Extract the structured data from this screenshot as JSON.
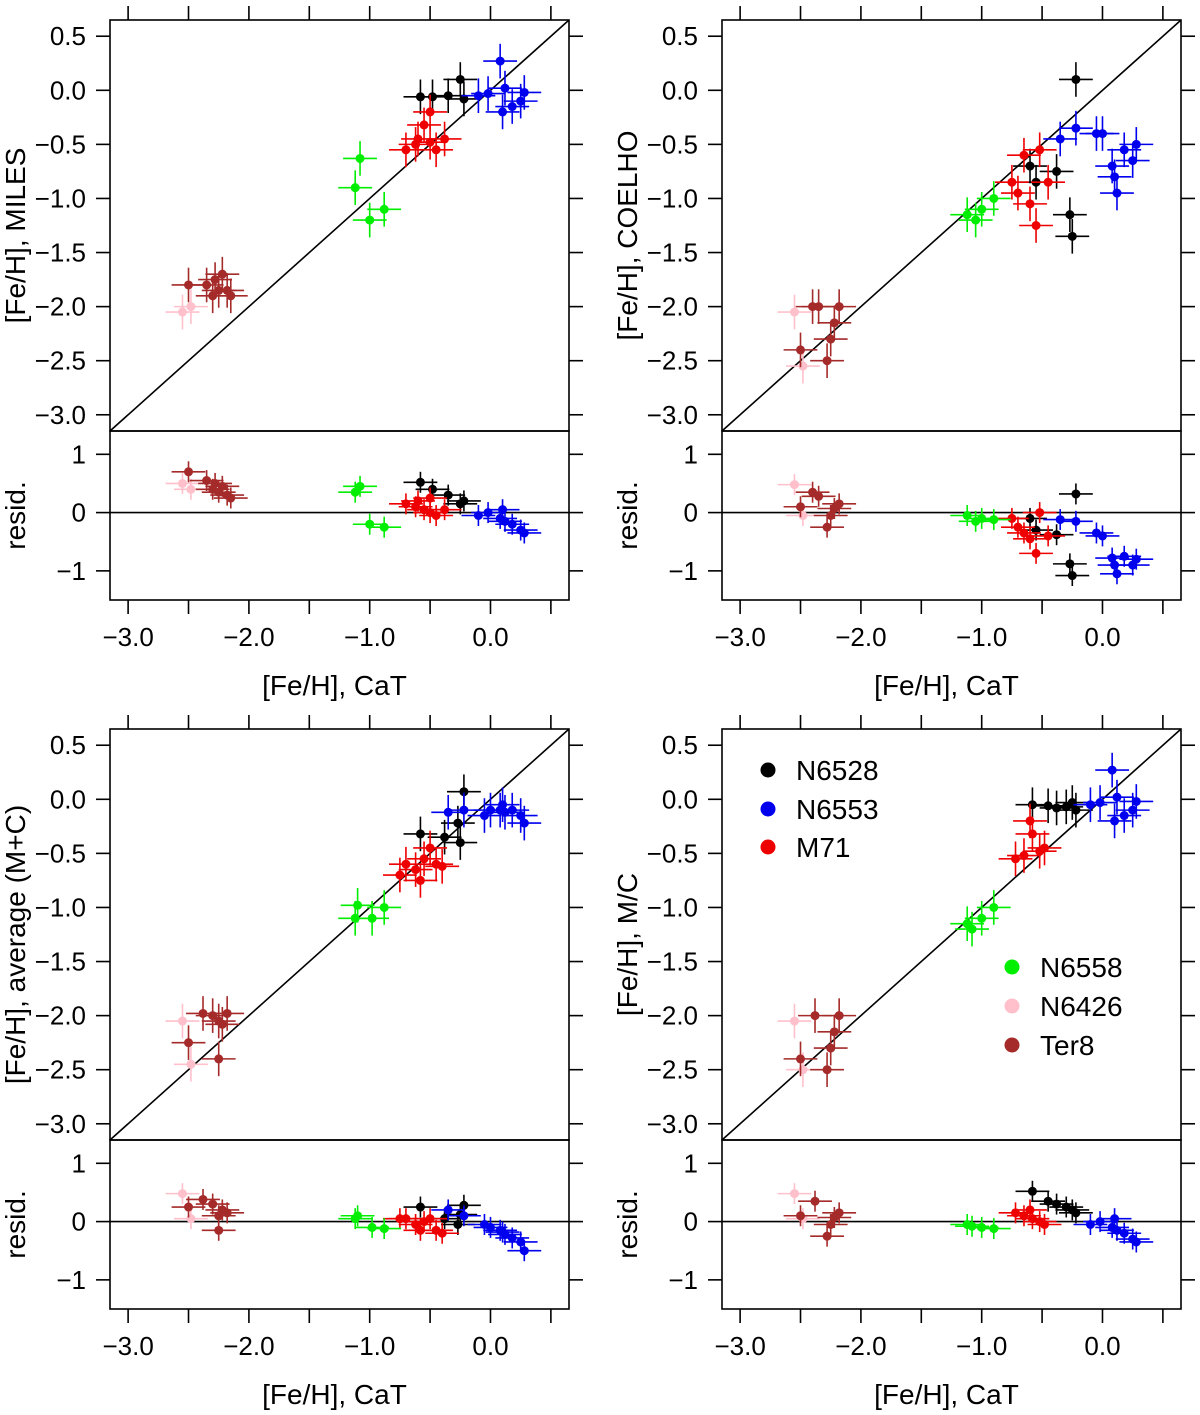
{
  "figure": {
    "xlabel": "[Fe/H], CaT",
    "resid_label": "resid.",
    "main_xlim": [
      -3.15,
      0.65
    ],
    "main_ylim": [
      -3.15,
      0.65
    ],
    "resid_ylim": [
      -1.5,
      1.4
    ],
    "x_ticks": [
      -3.0,
      -2.0,
      -1.0,
      0.0
    ],
    "x_tick_labels": [
      "−3.0",
      "−2.0",
      "−1.0",
      "0.0"
    ],
    "x_minor_ticks": [
      -2.5,
      -1.5,
      -0.5,
      0.5
    ],
    "y_ticks": [
      0.5,
      0.0,
      -0.5,
      -1.0,
      -1.5,
      -2.0,
      -2.5,
      -3.0
    ],
    "y_tick_labels": [
      "0.5",
      "0.0",
      "−0.5",
      "−1.0",
      "−1.5",
      "−2.0",
      "−2.5",
      "−3.0"
    ],
    "resid_ticks": [
      1,
      0,
      -1
    ],
    "resid_tick_labels": [
      "1",
      "0",
      "−1"
    ]
  },
  "colors": {
    "N6528": "#000000",
    "N6553": "#0000ee",
    "M71": "#ee0000",
    "N6558": "#00ee00",
    "N6426": "#ffc0cb",
    "Ter8": "#a52a2a"
  },
  "legend": {
    "group1": [
      "N6528",
      "N6553",
      "M71"
    ],
    "group2": [
      "N6558",
      "N6426",
      "Ter8"
    ]
  },
  "chart_data": [
    {
      "type": "scatter",
      "title": "",
      "xlabel": "[Fe/H], CaT",
      "ylabel": "[Fe/H], MILES",
      "resid_ylabel": "resid.",
      "xlim": [
        -3.15,
        0.65
      ],
      "ylim": [
        -3.15,
        0.65
      ],
      "series": [
        {
          "name": "N6528",
          "x": [
            -0.58,
            -0.35,
            -0.25,
            -0.22,
            -0.48
          ],
          "y": [
            -0.06,
            -0.05,
            0.1,
            -0.08,
            -0.06
          ]
        },
        {
          "name": "N6553",
          "x": [
            -0.1,
            -0.02,
            0.08,
            0.12,
            0.18,
            0.25,
            0.28,
            0.1
          ],
          "y": [
            -0.05,
            -0.03,
            0.27,
            0.02,
            -0.15,
            -0.1,
            -0.02,
            -0.2
          ]
        },
        {
          "name": "M71",
          "x": [
            -0.7,
            -0.62,
            -0.55,
            -0.5,
            -0.45,
            -0.38,
            -0.6,
            -0.5
          ],
          "y": [
            -0.55,
            -0.5,
            -0.32,
            -0.48,
            -0.55,
            -0.45,
            -0.45,
            -0.2
          ]
        },
        {
          "name": "N6558",
          "x": [
            -1.12,
            -1.08,
            -1.0,
            -0.88
          ],
          "y": [
            -0.9,
            -0.63,
            -1.2,
            -1.1
          ]
        },
        {
          "name": "N6426",
          "x": [
            -2.55,
            -2.48
          ],
          "y": [
            -2.05,
            -2.0
          ]
        },
        {
          "name": "Ter8",
          "x": [
            -2.5,
            -2.35,
            -2.3,
            -2.28,
            -2.25,
            -2.22,
            -2.18,
            -2.15
          ],
          "y": [
            -1.8,
            -1.8,
            -1.9,
            -1.75,
            -1.85,
            -1.7,
            -1.85,
            -1.9
          ]
        }
      ],
      "residuals": [
        {
          "name": "N6528",
          "x": [
            -0.58,
            -0.35,
            -0.25,
            -0.22,
            -0.48
          ],
          "y": [
            0.52,
            0.3,
            0.15,
            0.2,
            0.4
          ]
        },
        {
          "name": "N6553",
          "x": [
            -0.1,
            -0.02,
            0.08,
            0.12,
            0.18,
            0.25,
            0.28,
            0.1
          ],
          "y": [
            -0.05,
            0.0,
            -0.1,
            -0.15,
            -0.2,
            -0.3,
            -0.35,
            0.05
          ]
        },
        {
          "name": "M71",
          "x": [
            -0.7,
            -0.62,
            -0.55,
            -0.5,
            -0.45,
            -0.38,
            -0.6,
            -0.5
          ],
          "y": [
            0.15,
            0.1,
            0.05,
            0.0,
            -0.05,
            0.05,
            0.2,
            0.25
          ]
        },
        {
          "name": "N6558",
          "x": [
            -1.12,
            -1.08,
            -1.0,
            -0.88
          ],
          "y": [
            0.35,
            0.45,
            -0.2,
            -0.25
          ]
        },
        {
          "name": "N6426",
          "x": [
            -2.55,
            -2.48
          ],
          "y": [
            0.5,
            0.4
          ]
        },
        {
          "name": "Ter8",
          "x": [
            -2.5,
            -2.35,
            -2.3,
            -2.28,
            -2.25,
            -2.22,
            -2.18,
            -2.15
          ],
          "y": [
            0.7,
            0.55,
            0.4,
            0.5,
            0.35,
            0.45,
            0.3,
            0.25
          ]
        }
      ]
    },
    {
      "type": "scatter",
      "title": "",
      "xlabel": "[Fe/H], CaT",
      "ylabel": "[Fe/H], COELHO",
      "resid_ylabel": "resid.",
      "xlim": [
        -3.15,
        0.65
      ],
      "ylim": [
        -3.15,
        0.65
      ],
      "series": [
        {
          "name": "N6528",
          "x": [
            -0.6,
            -0.55,
            -0.38,
            -0.27,
            -0.25,
            -0.22
          ],
          "y": [
            -0.7,
            -0.85,
            -0.75,
            -1.15,
            -1.35,
            0.1
          ]
        },
        {
          "name": "N6553",
          "x": [
            -0.35,
            -0.22,
            -0.05,
            0.0,
            0.08,
            0.1,
            0.12,
            0.18,
            0.25,
            0.28
          ],
          "y": [
            -0.45,
            -0.35,
            -0.4,
            -0.4,
            -0.7,
            -0.8,
            -0.95,
            -0.55,
            -0.65,
            -0.5
          ]
        },
        {
          "name": "M71",
          "x": [
            -0.75,
            -0.7,
            -0.65,
            -0.6,
            -0.55,
            -0.52,
            -0.45
          ],
          "y": [
            -0.85,
            -0.95,
            -0.6,
            -1.05,
            -1.25,
            -0.55,
            -0.85
          ]
        },
        {
          "name": "N6558",
          "x": [
            -1.12,
            -1.05,
            -1.0,
            -0.9
          ],
          "y": [
            -1.15,
            -1.2,
            -1.1,
            -1.0
          ]
        },
        {
          "name": "N6426",
          "x": [
            -2.55,
            -2.48
          ],
          "y": [
            -2.05,
            -2.55
          ]
        },
        {
          "name": "Ter8",
          "x": [
            -2.5,
            -2.4,
            -2.35,
            -2.28,
            -2.25,
            -2.22,
            -2.18
          ],
          "y": [
            -2.4,
            -2.0,
            -2.0,
            -2.5,
            -2.3,
            -2.15,
            -2.0
          ]
        }
      ],
      "residuals": [
        {
          "name": "N6528",
          "x": [
            -0.6,
            -0.55,
            -0.38,
            -0.27,
            -0.25,
            -0.22
          ],
          "y": [
            -0.1,
            -0.3,
            -0.38,
            -0.88,
            -1.08,
            0.32
          ]
        },
        {
          "name": "N6553",
          "x": [
            -0.35,
            -0.22,
            -0.05,
            0.0,
            0.08,
            0.1,
            0.12,
            0.18,
            0.25,
            0.28
          ],
          "y": [
            -0.12,
            -0.15,
            -0.35,
            -0.4,
            -0.78,
            -0.9,
            -1.05,
            -0.75,
            -0.9,
            -0.8
          ]
        },
        {
          "name": "M71",
          "x": [
            -0.75,
            -0.7,
            -0.65,
            -0.6,
            -0.55,
            -0.52,
            -0.45
          ],
          "y": [
            -0.1,
            -0.25,
            -0.35,
            -0.45,
            -0.7,
            0.0,
            -0.4
          ]
        },
        {
          "name": "N6558",
          "x": [
            -1.12,
            -1.05,
            -1.0,
            -0.9
          ],
          "y": [
            -0.05,
            -0.15,
            -0.1,
            -0.12
          ]
        },
        {
          "name": "N6426",
          "x": [
            -2.55,
            -2.48
          ],
          "y": [
            0.48,
            -0.05
          ]
        },
        {
          "name": "Ter8",
          "x": [
            -2.5,
            -2.4,
            -2.35,
            -2.28,
            -2.25,
            -2.22,
            -2.18
          ],
          "y": [
            0.1,
            0.35,
            0.28,
            -0.25,
            -0.05,
            0.07,
            0.15
          ]
        }
      ]
    },
    {
      "type": "scatter",
      "title": "",
      "xlabel": "[Fe/H], CaT",
      "ylabel": "[Fe/H], average (M+C)",
      "resid_ylabel": "resid.",
      "xlim": [
        -3.15,
        0.65
      ],
      "ylim": [
        -3.15,
        0.65
      ],
      "series": [
        {
          "name": "N6528",
          "x": [
            -0.58,
            -0.38,
            -0.25,
            -0.22,
            -0.27
          ],
          "y": [
            -0.32,
            -0.35,
            -0.4,
            0.07,
            -0.22
          ]
        },
        {
          "name": "N6553",
          "x": [
            -0.35,
            -0.22,
            -0.05,
            0.0,
            0.08,
            0.1,
            0.12,
            0.18,
            0.25,
            0.28
          ],
          "y": [
            -0.12,
            -0.1,
            -0.15,
            -0.1,
            -0.1,
            -0.05,
            -0.12,
            -0.1,
            -0.15,
            -0.22
          ]
        },
        {
          "name": "M71",
          "x": [
            -0.75,
            -0.7,
            -0.62,
            -0.58,
            -0.55,
            -0.5,
            -0.45,
            -0.4
          ],
          "y": [
            -0.7,
            -0.6,
            -0.65,
            -0.75,
            -0.55,
            -0.45,
            -0.6,
            -0.62
          ]
        },
        {
          "name": "N6558",
          "x": [
            -1.12,
            -1.1,
            -0.98,
            -0.88
          ],
          "y": [
            -1.1,
            -0.98,
            -1.1,
            -1.0
          ]
        },
        {
          "name": "N6426",
          "x": [
            -2.55,
            -2.48
          ],
          "y": [
            -2.05,
            -2.45
          ]
        },
        {
          "name": "Ter8",
          "x": [
            -2.5,
            -2.38,
            -2.3,
            -2.25,
            -2.22,
            -2.18,
            -2.25
          ],
          "y": [
            -2.25,
            -1.98,
            -2.0,
            -2.4,
            -2.08,
            -1.98,
            -2.05
          ]
        }
      ],
      "residuals": [
        {
          "name": "N6528",
          "x": [
            -0.58,
            -0.38,
            -0.25,
            -0.22,
            -0.27
          ],
          "y": [
            0.25,
            0.05,
            0.12,
            0.28,
            -0.05
          ]
        },
        {
          "name": "N6553",
          "x": [
            -0.35,
            -0.22,
            -0.05,
            0.0,
            0.08,
            0.1,
            0.12,
            0.18,
            0.25,
            0.28
          ],
          "y": [
            0.2,
            0.1,
            -0.05,
            -0.1,
            -0.15,
            -0.18,
            -0.22,
            -0.28,
            -0.35,
            -0.5
          ]
        },
        {
          "name": "M71",
          "x": [
            -0.75,
            -0.7,
            -0.62,
            -0.58,
            -0.55,
            -0.5,
            -0.45,
            -0.4
          ],
          "y": [
            0.05,
            0.05,
            -0.05,
            -0.15,
            0.0,
            0.05,
            -0.15,
            -0.2
          ]
        },
        {
          "name": "N6558",
          "x": [
            -1.12,
            -1.1,
            -0.98,
            -0.88
          ],
          "y": [
            0.05,
            0.1,
            -0.1,
            -0.12
          ]
        },
        {
          "name": "N6426",
          "x": [
            -2.55,
            -2.48
          ],
          "y": [
            0.48,
            0.05
          ]
        },
        {
          "name": "Ter8",
          "x": [
            -2.5,
            -2.38,
            -2.3,
            -2.25,
            -2.22,
            -2.18,
            -2.25
          ],
          "y": [
            0.25,
            0.38,
            0.3,
            -0.15,
            0.2,
            0.15,
            0.1
          ]
        }
      ]
    },
    {
      "type": "scatter",
      "title": "",
      "xlabel": "[Fe/H], CaT",
      "ylabel": "[Fe/H], M/C",
      "resid_ylabel": "resid.",
      "xlim": [
        -3.15,
        0.65
      ],
      "ylim": [
        -3.15,
        0.65
      ],
      "series": [
        {
          "name": "N6528",
          "x": [
            -0.58,
            -0.45,
            -0.38,
            -0.3,
            -0.25,
            -0.22
          ],
          "y": [
            -0.05,
            -0.06,
            -0.08,
            -0.07,
            -0.03,
            -0.1
          ]
        },
        {
          "name": "N6553",
          "x": [
            -0.1,
            -0.02,
            0.08,
            0.12,
            0.18,
            0.25,
            0.28,
            0.1
          ],
          "y": [
            -0.05,
            -0.03,
            0.27,
            0.02,
            -0.15,
            -0.1,
            -0.02,
            -0.2
          ]
        },
        {
          "name": "M71",
          "x": [
            -0.72,
            -0.65,
            -0.58,
            -0.52,
            -0.48,
            -0.6
          ],
          "y": [
            -0.55,
            -0.52,
            -0.32,
            -0.48,
            -0.45,
            -0.2
          ]
        },
        {
          "name": "N6558",
          "x": [
            -1.12,
            -1.08,
            -1.0,
            -0.9
          ],
          "y": [
            -1.15,
            -1.2,
            -1.1,
            -1.0
          ]
        },
        {
          "name": "N6426",
          "x": [
            -2.55,
            -2.48
          ],
          "y": [
            -2.05,
            -2.5
          ]
        },
        {
          "name": "Ter8",
          "x": [
            -2.5,
            -2.38,
            -2.28,
            -2.25,
            -2.22,
            -2.18
          ],
          "y": [
            -2.4,
            -2.0,
            -2.5,
            -2.3,
            -2.15,
            -2.0
          ]
        }
      ],
      "residuals": [
        {
          "name": "N6528",
          "x": [
            -0.58,
            -0.45,
            -0.38,
            -0.3,
            -0.25,
            -0.22
          ],
          "y": [
            0.52,
            0.35,
            0.3,
            0.25,
            0.2,
            0.15
          ]
        },
        {
          "name": "N6553",
          "x": [
            -0.1,
            -0.02,
            0.08,
            0.12,
            0.18,
            0.25,
            0.28,
            0.1
          ],
          "y": [
            -0.05,
            0.0,
            -0.1,
            -0.15,
            -0.2,
            -0.3,
            -0.35,
            0.05
          ]
        },
        {
          "name": "M71",
          "x": [
            -0.72,
            -0.65,
            -0.58,
            -0.52,
            -0.48,
            -0.6
          ],
          "y": [
            0.15,
            0.1,
            0.05,
            0.0,
            -0.05,
            0.2
          ]
        },
        {
          "name": "N6558",
          "x": [
            -1.12,
            -1.08,
            -1.0,
            -0.9
          ],
          "y": [
            -0.05,
            -0.08,
            -0.1,
            -0.12
          ]
        },
        {
          "name": "N6426",
          "x": [
            -2.55,
            -2.48
          ],
          "y": [
            0.48,
            0.05
          ]
        },
        {
          "name": "Ter8",
          "x": [
            -2.5,
            -2.38,
            -2.28,
            -2.25,
            -2.22,
            -2.18
          ],
          "y": [
            0.1,
            0.35,
            -0.25,
            -0.05,
            0.07,
            0.15
          ]
        }
      ]
    }
  ]
}
